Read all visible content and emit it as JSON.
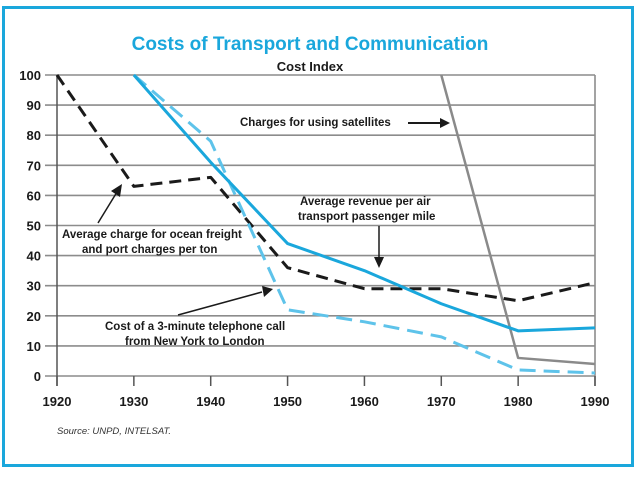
{
  "chart_data": {
    "type": "line",
    "title": "Costs of Transport and Communication",
    "ylabel": "Cost Index",
    "xlabel": "",
    "ylim": [
      0,
      100
    ],
    "xlim": [
      1920,
      1990
    ],
    "grid": true,
    "yticks": [
      0,
      10,
      20,
      30,
      40,
      50,
      60,
      70,
      80,
      90,
      100
    ],
    "xticks": [
      1920,
      1930,
      1940,
      1950,
      1960,
      1970,
      1980,
      1990
    ],
    "series": [
      {
        "name": "Average charge for ocean freight and port charges per ton",
        "style": "dashed",
        "color": "#1a1a1a",
        "x": [
          1920,
          1930,
          1940,
          1950,
          1960,
          1970,
          1980,
          1990
        ],
        "values": [
          100,
          63,
          66,
          36,
          29,
          29,
          25,
          31
        ]
      },
      {
        "name": "Average revenue per air transport passenger mile",
        "style": "solid",
        "color": "#1aa7dc",
        "x": [
          1930,
          1940,
          1950,
          1960,
          1970,
          1980,
          1990
        ],
        "values": [
          100,
          71,
          44,
          35,
          24,
          15,
          16
        ]
      },
      {
        "name": "Cost of a 3-minute telephone call from New York to London",
        "style": "dashed",
        "color": "#5ec3ea",
        "x": [
          1930,
          1940,
          1950,
          1960,
          1970,
          1980,
          1990
        ],
        "values": [
          100,
          78,
          22,
          18,
          13,
          2,
          1
        ]
      },
      {
        "name": "Charges for using satellites",
        "style": "solid",
        "color": "#8a8a8a",
        "x": [
          1970,
          1980,
          1990
        ],
        "values": [
          100,
          6,
          4
        ]
      }
    ],
    "annotations": [
      {
        "lines": [
          "Charges for using satellites"
        ],
        "target_series": 3
      },
      {
        "lines": [
          "Average revenue per air",
          "transport passenger mile"
        ],
        "target_series": 1
      },
      {
        "lines": [
          "Average charge for ocean freight",
          "and port charges per ton"
        ],
        "target_series": 0
      },
      {
        "lines": [
          "Cost of a 3-minute telephone call",
          "from New York to London"
        ],
        "target_series": 2
      }
    ],
    "source": "Source: UNPD, INTELSAT."
  }
}
